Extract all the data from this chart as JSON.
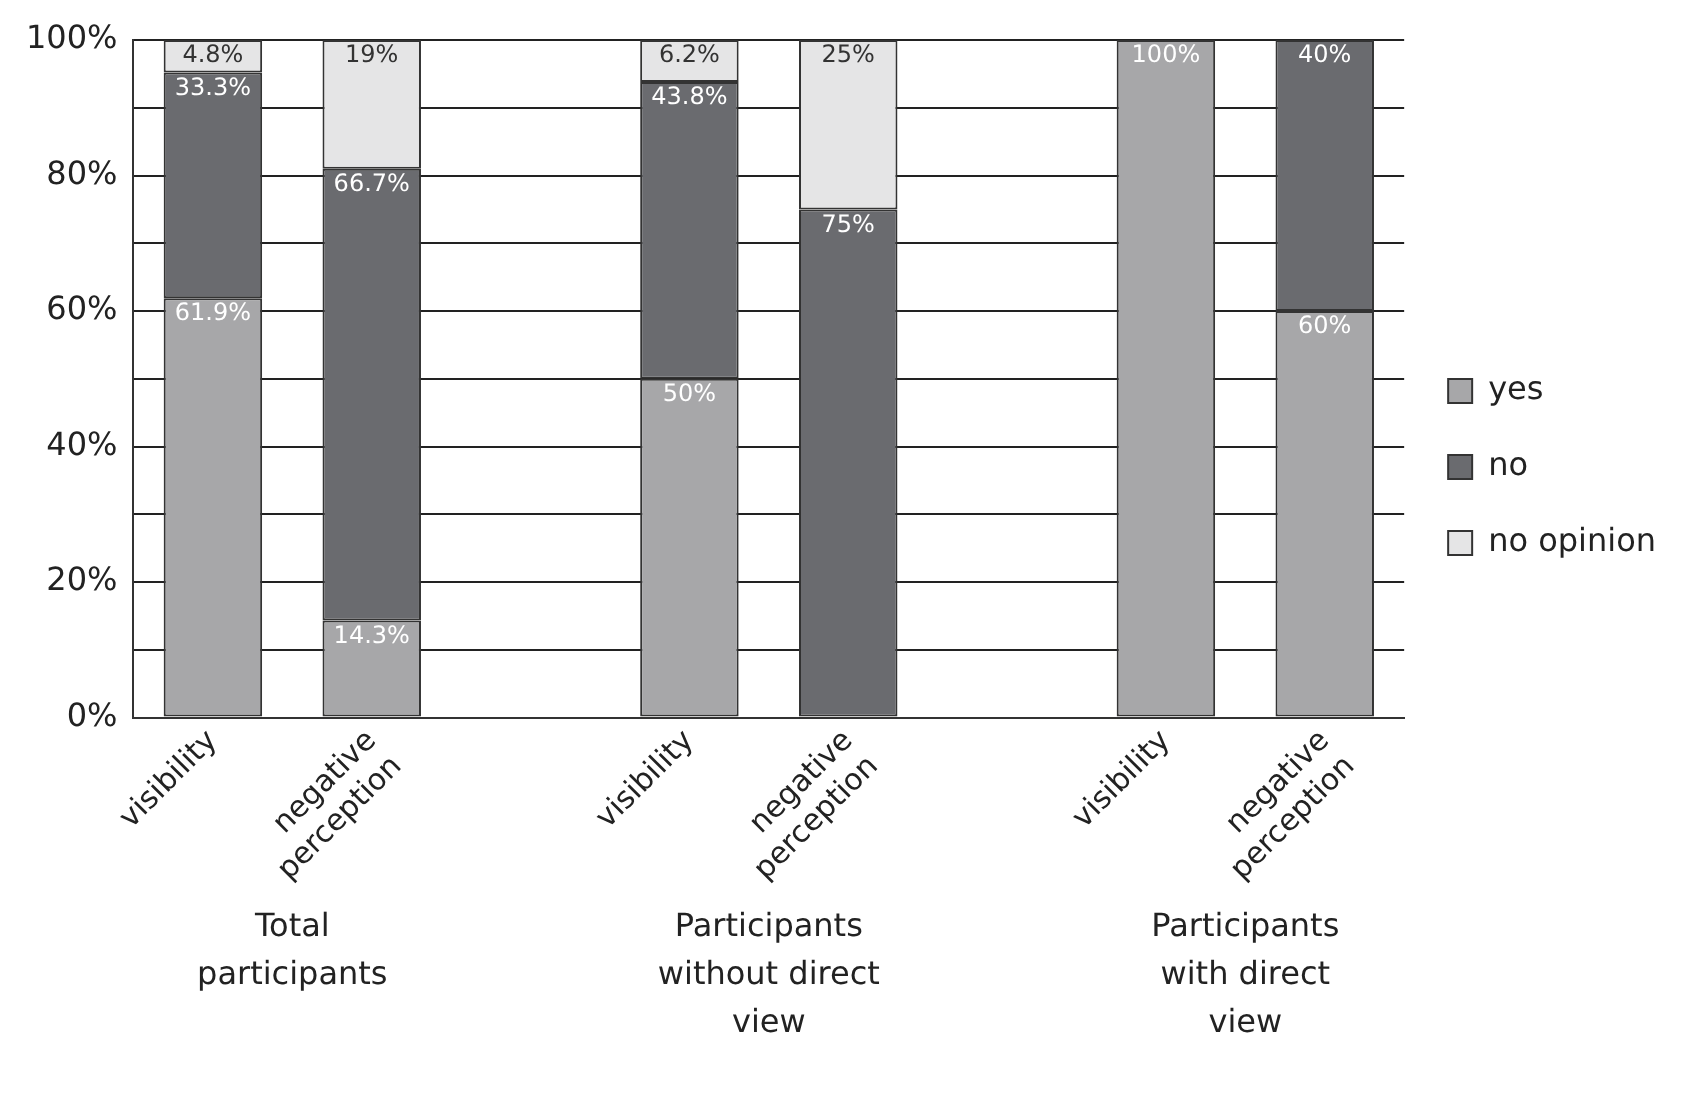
{
  "chart_data": {
    "type": "bar",
    "stacked": true,
    "categories": [
      "visibility",
      "negative perception",
      null,
      "visibility",
      "negative perception",
      null,
      "visibility",
      "negative perception"
    ],
    "series": [
      {
        "name": "yes",
        "color": "#a7a7a9",
        "values": [
          61.9,
          14.3,
          null,
          50,
          0,
          null,
          100,
          60
        ],
        "value_labels": [
          "61.9%",
          "14.3%",
          null,
          "50%",
          null,
          null,
          "100%",
          "60%"
        ]
      },
      {
        "name": "no",
        "color": "#6a6b6f",
        "values": [
          33.3,
          66.7,
          null,
          43.8,
          75,
          null,
          0,
          40
        ],
        "value_labels": [
          "33.3%",
          "66.7%",
          null,
          "43.8%",
          "75%",
          null,
          null,
          "40%"
        ]
      },
      {
        "name": "no opinion",
        "color": "#e5e5e6",
        "values": [
          4.8,
          19,
          null,
          6.2,
          25,
          null,
          0,
          0
        ],
        "value_labels": [
          "4.8%",
          "19%",
          null,
          "6.2%",
          "25%",
          null,
          null,
          null
        ]
      }
    ],
    "ylim": [
      0,
      100
    ],
    "yticks": [
      {
        "value": 0,
        "label": "0%"
      },
      {
        "value": 10,
        "label": null
      },
      {
        "value": 20,
        "label": "20%"
      },
      {
        "value": 30,
        "label": null
      },
      {
        "value": 40,
        "label": "40%"
      },
      {
        "value": 50,
        "label": null
      },
      {
        "value": 60,
        "label": "60%"
      },
      {
        "value": 70,
        "label": null
      },
      {
        "value": 80,
        "label": "80%"
      },
      {
        "value": 90,
        "label": null
      },
      {
        "value": 100,
        "label": "100%"
      }
    ],
    "grid": "y",
    "legend": "right",
    "annotations": [
      "Total participants",
      "Participants without direct view",
      "Participants with direct view"
    ]
  }
}
